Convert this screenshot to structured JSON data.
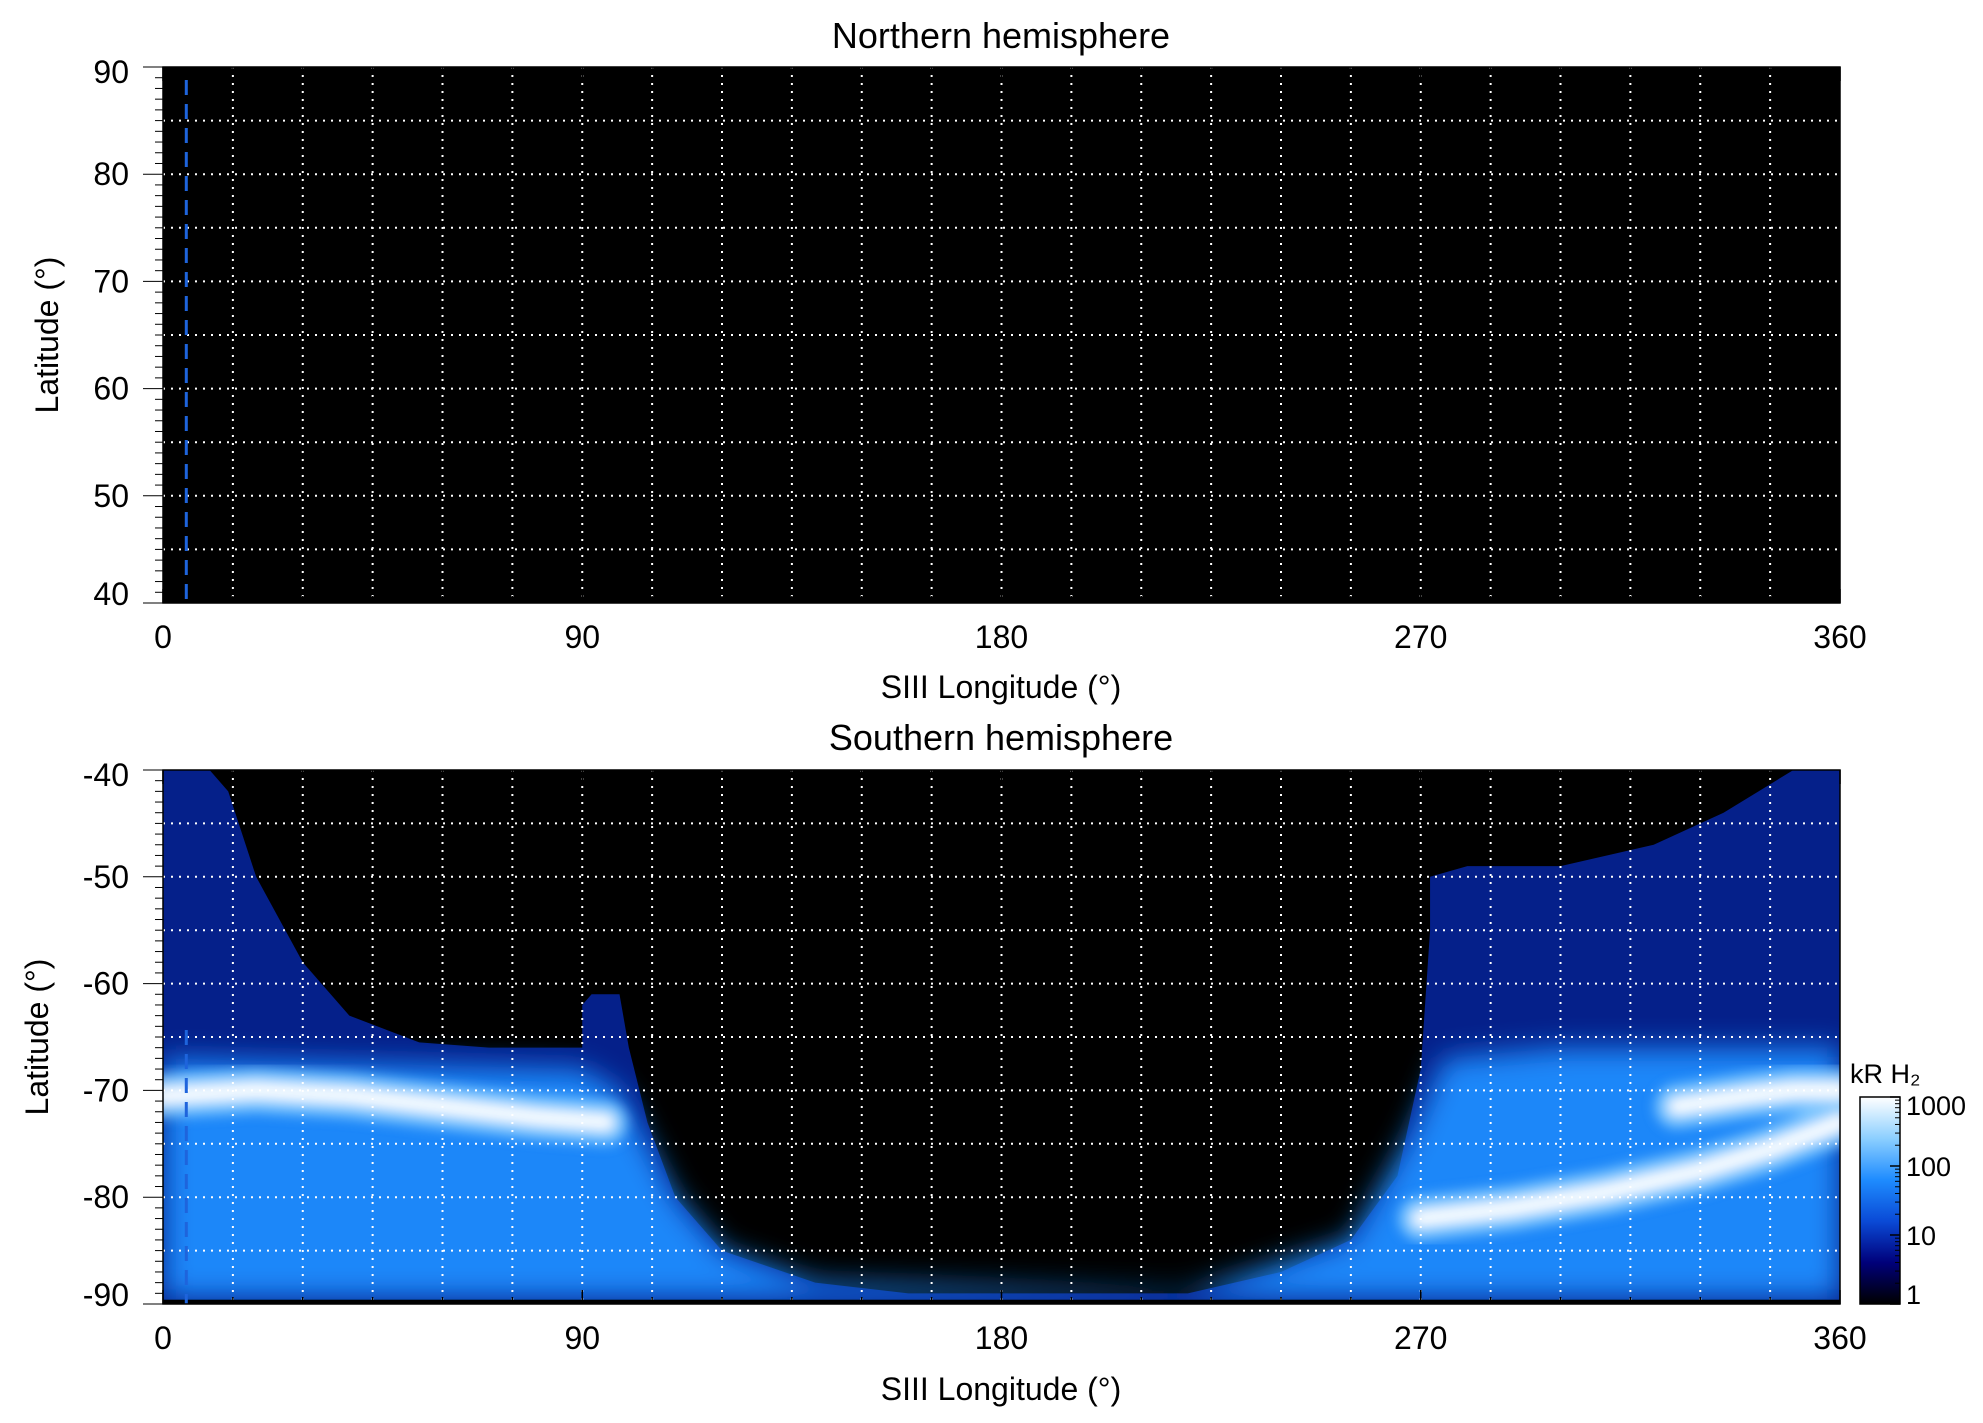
{
  "chart_data": [
    {
      "type": "heatmap",
      "title": "Northern hemisphere",
      "xlabel": "SIII Longitude (°)",
      "ylabel": "Latitude (°)",
      "xlim": [
        0,
        360
      ],
      "ylim": [
        40,
        90
      ],
      "x_ticks": [
        0,
        90,
        180,
        270,
        360
      ],
      "x_tick_labels": [
        "0",
        "90",
        "180",
        "270",
        "360"
      ],
      "y_ticks": [
        90,
        80,
        70,
        60,
        50,
        40
      ],
      "y_tick_labels": [
        "90",
        "80",
        "70",
        "60",
        "50",
        "40"
      ],
      "grid": true,
      "grid_step_x": 15,
      "grid_step_y": 5,
      "reference_longitude": 5,
      "emission": "none",
      "background_color": "#000000"
    },
    {
      "type": "heatmap",
      "title": "Southern hemisphere",
      "xlabel": "SIII Longitude (°)",
      "ylabel": "Latitude (°)",
      "xlim": [
        0,
        360
      ],
      "ylim": [
        -90,
        -40
      ],
      "x_ticks": [
        0,
        90,
        180,
        270,
        360
      ],
      "x_tick_labels": [
        "0",
        "90",
        "180",
        "270",
        "360"
      ],
      "y_ticks": [
        -40,
        -50,
        -60,
        -70,
        -80,
        -90
      ],
      "y_tick_labels": [
        "-40",
        "-50",
        "-60",
        "-70",
        "-80",
        "-90"
      ],
      "grid": true,
      "grid_step_x": 15,
      "grid_step_y": 5,
      "reference_longitude": 5,
      "background_color": "#000000",
      "coverage_boundary": {
        "lon": [
          0,
          10,
          14,
          20,
          30,
          40,
          55,
          70,
          80,
          90,
          90,
          92,
          98,
          100,
          104,
          110,
          120,
          140,
          160,
          180,
          200,
          220,
          240,
          255,
          265,
          270,
          272,
          272,
          280,
          300,
          320,
          335,
          350,
          360
        ],
        "lat": [
          -40,
          -40,
          -42,
          -50,
          -58,
          -63,
          -65.5,
          -66,
          -66,
          -66,
          -62,
          -61,
          -61,
          -66,
          -73,
          -80,
          -85,
          -88,
          -89,
          -89,
          -89,
          -89,
          -87,
          -84,
          -78,
          -68,
          -55,
          -50,
          -49,
          -49,
          -47,
          -44,
          -40,
          -40
        ]
      },
      "auroral_bands": [
        {
          "lon": [
            0,
            20,
            40,
            60,
            80,
            95
          ],
          "lat": [
            -70.5,
            -70,
            -70.5,
            -71.5,
            -72.5,
            -73
          ]
        },
        {
          "lon": [
            270,
            290,
            310,
            330,
            345,
            360
          ],
          "lat": [
            -82,
            -81,
            -79.5,
            -77.5,
            -75.5,
            -73
          ]
        },
        {
          "lon": [
            325,
            340,
            350,
            360
          ],
          "lat": [
            -71.5,
            -70.5,
            -70,
            -70
          ]
        }
      ]
    }
  ],
  "colorbar": {
    "label": "kR H₂",
    "scale": "log",
    "range": [
      1,
      1000
    ],
    "ticks": [
      1,
      10,
      100,
      1000
    ],
    "tick_labels": [
      "1",
      "10",
      "100",
      "1000"
    ],
    "colors": [
      "#000000",
      "#00007a",
      "#0a4ad6",
      "#1e8cff",
      "#8ccfff",
      "#ffffff"
    ]
  },
  "colors": {
    "reference_line": "#1e64dc",
    "grid": "#ffffff",
    "emission_mid": "#1e8cff",
    "emission_dim": "#05208a"
  }
}
